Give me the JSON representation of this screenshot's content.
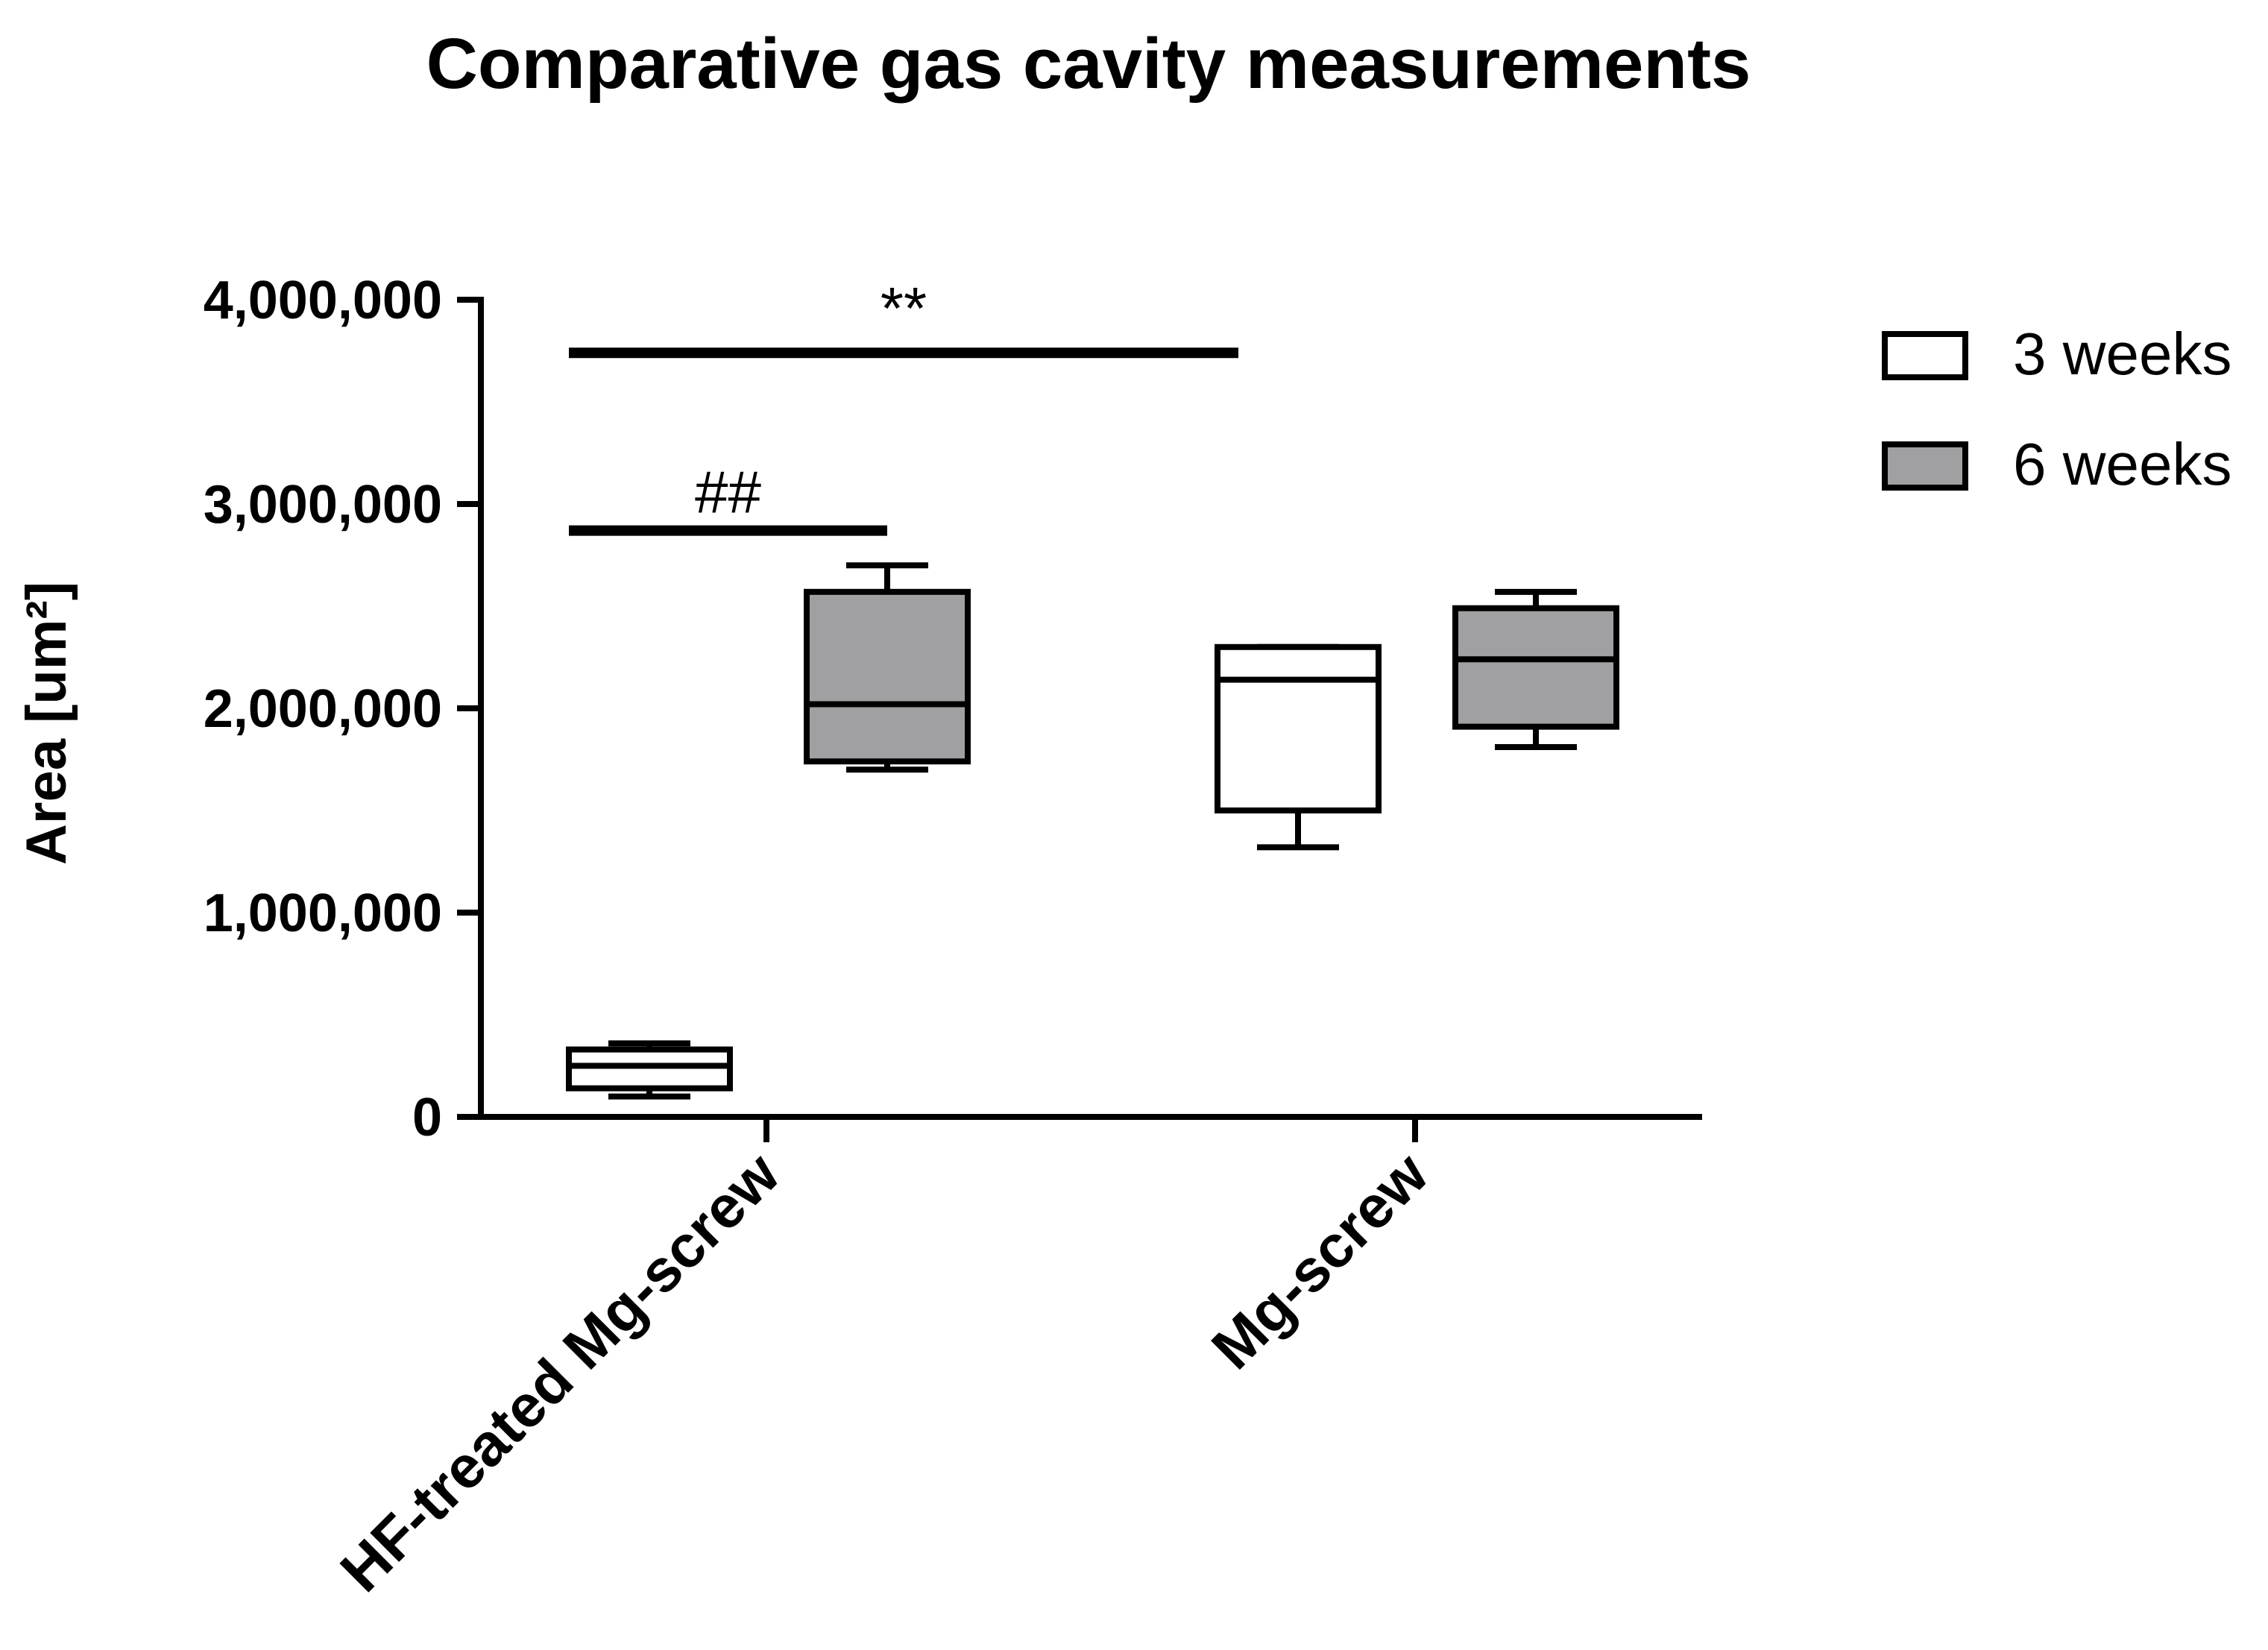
{
  "chart_data": {
    "type": "box",
    "title": "Comparative gas cavity measurements",
    "xlabel": "",
    "ylabel": "Area [um²]",
    "ylim": [
      0,
      4000000
    ],
    "yticks": [
      0,
      1000000,
      2000000,
      3000000,
      4000000
    ],
    "ytick_labels": [
      "0",
      "1,000,000",
      "2,000,000",
      "3,000,000",
      "4,000,000"
    ],
    "categories": [
      "HF-treated Mg-screw",
      "Mg-screw"
    ],
    "legend_position": "top-right",
    "grid": false,
    "series": [
      {
        "name": "3 weeks",
        "color": "#ffffff",
        "boxes": [
          {
            "category": "HF-treated Mg-screw",
            "min": 100000,
            "q1": 140000,
            "median": 250000,
            "q3": 330000,
            "max": 360000
          },
          {
            "category": "Mg-screw",
            "min": 1320000,
            "q1": 1500000,
            "median": 2140000,
            "q3": 2300000,
            "max": 2300000
          }
        ]
      },
      {
        "name": "6 weeks",
        "color": "#a0a0a3",
        "boxes": [
          {
            "category": "HF-treated Mg-screw",
            "min": 1700000,
            "q1": 1740000,
            "median": 2020000,
            "q3": 2570000,
            "max": 2700000
          },
          {
            "category": "Mg-screw",
            "min": 1810000,
            "q1": 1910000,
            "median": 2240000,
            "q3": 2490000,
            "max": 2570000
          }
        ]
      }
    ],
    "annotations": [
      {
        "label": "**",
        "from": "HF-treated Mg-screw / 3 weeks",
        "to": "Mg-screw / 3 weeks",
        "y": 3740000
      },
      {
        "label": "##",
        "from": "HF-treated Mg-screw / 3 weeks",
        "to": "HF-treated Mg-screw / 6 weeks",
        "y": 2870000
      }
    ]
  }
}
